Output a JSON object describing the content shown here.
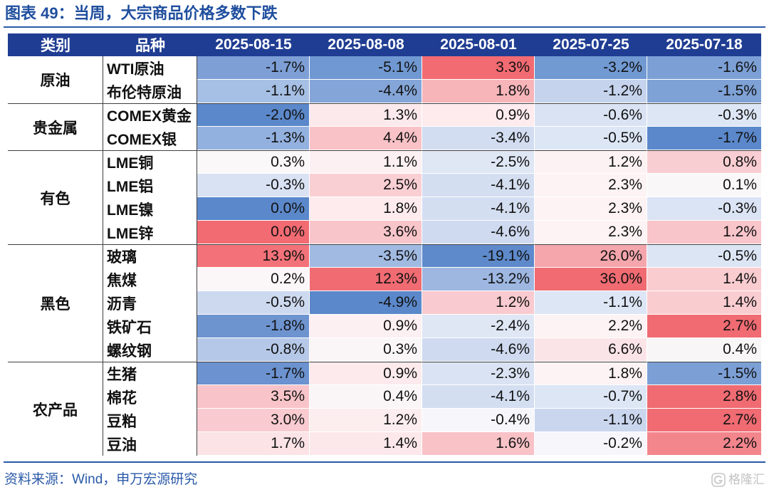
{
  "figure": {
    "source": "资料来源：Wind，申万宏源研究",
    "watermark": "格隆汇"
  },
  "colors": {
    "title": "#1f4e9e",
    "rule": "#2a5aa8",
    "header_bg": "#1f3d92",
    "header_text": "#ffffff",
    "separator": "#404040",
    "source_text": "#2b5aa8",
    "watermark": "#b8b8b8"
  },
  "chart_data": {
    "type": "heatmap",
    "title": "图表 49：当周，大宗商品价格多数下跌",
    "header": {
      "category": "类别",
      "variety": "品种"
    },
    "columns": [
      "2025-08-15",
      "2025-08-08",
      "2025-08-01",
      "2025-07-25",
      "2025-07-18"
    ],
    "groups": [
      {
        "category": "原油",
        "rows": [
          {
            "name": "WTI原油",
            "values": [
              "-1.7%",
              "-5.1%",
              "3.3%",
              "-3.2%",
              "-1.6%"
            ],
            "fills": [
              "#7d9fd6",
              "#7098d2",
              "#f26b72",
              "#7199d2",
              "#7ca0d6"
            ]
          },
          {
            "name": "布伦特原油",
            "values": [
              "-1.1%",
              "-4.4%",
              "1.8%",
              "-1.2%",
              "-1.5%"
            ],
            "fills": [
              "#a6bfe4",
              "#84a5d8",
              "#f7b5ba",
              "#c5d3ed",
              "#7ea1d6"
            ]
          }
        ]
      },
      {
        "category": "贵金属",
        "rows": [
          {
            "name": "COMEX黄金",
            "values": [
              "-2.0%",
              "1.3%",
              "0.9%",
              "-0.6%",
              "-0.3%"
            ],
            "fills": [
              "#5b88ca",
              "#fce9eb",
              "#fdebed",
              "#dae3f3",
              "#dde6f5"
            ]
          },
          {
            "name": "COMEX银",
            "values": [
              "-1.3%",
              "4.4%",
              "-3.4%",
              "-0.5%",
              "-1.7%"
            ],
            "fills": [
              "#93b1df",
              "#f9c2c7",
              "#d3ddf1",
              "#dde6f5",
              "#5b88ca"
            ]
          }
        ]
      },
      {
        "category": "有色",
        "rows": [
          {
            "name": "LME铜",
            "values": [
              "0.3%",
              "1.1%",
              "-2.5%",
              "1.2%",
              "0.8%"
            ],
            "fills": [
              "#fbf8fa",
              "#fdf0f2",
              "#dfe7f5",
              "#fdf2f3",
              "#f9ced2"
            ]
          },
          {
            "name": "LME铝",
            "values": [
              "-0.3%",
              "2.5%",
              "-4.1%",
              "2.3%",
              "0.1%"
            ],
            "fills": [
              "#d9e2f3",
              "#f9cfd3",
              "#d4def1",
              "#fdf3f4",
              "#faf7f9"
            ]
          },
          {
            "name": "LME镍",
            "values": [
              "0.0%",
              "1.8%",
              "-4.1%",
              "2.3%",
              "-0.3%"
            ],
            "fills": [
              "#5b88ca",
              "#fdebed",
              "#d4def1",
              "#fdf3f4",
              "#dbe4f4"
            ]
          },
          {
            "name": "LME锌",
            "values": [
              "0.0%",
              "3.6%",
              "-4.6%",
              "2.3%",
              "1.2%"
            ],
            "fills": [
              "#f26b72",
              "#f8c5ca",
              "#cfdaf0",
              "#fdf3f4",
              "#f8c5ca"
            ]
          }
        ]
      },
      {
        "category": "黑色",
        "rows": [
          {
            "name": "玻璃",
            "values": [
              "13.9%",
              "-3.5%",
              "-19.1%",
              "26.0%",
              "-0.5%"
            ],
            "fills": [
              "#f37279",
              "#a1bae2",
              "#5e8acb",
              "#f4a6ac",
              "#dce5f4"
            ]
          },
          {
            "name": "焦煤",
            "values": [
              "0.2%",
              "12.3%",
              "-13.2%",
              "36.0%",
              "1.4%"
            ],
            "fills": [
              "#fbf6f8",
              "#f06b72",
              "#9db7e1",
              "#f06b72",
              "#f9ccd0"
            ]
          },
          {
            "name": "沥青",
            "values": [
              "-0.5%",
              "-4.9%",
              "1.2%",
              "-1.1%",
              "1.4%"
            ],
            "fills": [
              "#cdd9ef",
              "#5b88ca",
              "#f9cacf",
              "#dde6f5",
              "#f9ccd0"
            ]
          },
          {
            "name": "铁矿石",
            "values": [
              "-1.8%",
              "0.9%",
              "-2.4%",
              "2.2%",
              "2.7%"
            ],
            "fills": [
              "#6e94d0",
              "#fdf0f2",
              "#dfe7f5",
              "#fdf3f4",
              "#f06b72"
            ]
          },
          {
            "name": "螺纹钢",
            "values": [
              "-0.8%",
              "0.3%",
              "-4.6%",
              "6.6%",
              "0.4%"
            ],
            "fills": [
              "#b5c8e8",
              "#faf6f8",
              "#cfdaf0",
              "#fbe4e7",
              "#f9f6f8"
            ]
          }
        ]
      },
      {
        "category": "农产品",
        "rows": [
          {
            "name": "生猪",
            "values": [
              "-1.7%",
              "0.9%",
              "-2.3%",
              "1.8%",
              "-1.5%"
            ],
            "fills": [
              "#6c92cf",
              "#fceaec",
              "#dae3f3",
              "#fdf3f4",
              "#7ca0d6"
            ]
          },
          {
            "name": "棉花",
            "values": [
              "3.5%",
              "0.4%",
              "-4.1%",
              "-0.7%",
              "2.8%"
            ],
            "fills": [
              "#f8c4c9",
              "#faf6f8",
              "#d4def1",
              "#dde6f5",
              "#f06b72"
            ]
          },
          {
            "name": "豆粕",
            "values": [
              "3.0%",
              "1.2%",
              "-0.4%",
              "-1.1%",
              "2.7%"
            ],
            "fills": [
              "#f9cbd0",
              "#fcedef",
              "#f6f6fb",
              "#c9d6ee",
              "#f06b72"
            ]
          },
          {
            "name": "豆油",
            "values": [
              "1.7%",
              "1.4%",
              "1.6%",
              "-0.2%",
              "2.2%"
            ],
            "fills": [
              "#fbe3e6",
              "#fce8ea",
              "#f8c2c7",
              "#f7f7fb",
              "#f3858c"
            ]
          }
        ]
      }
    ]
  }
}
